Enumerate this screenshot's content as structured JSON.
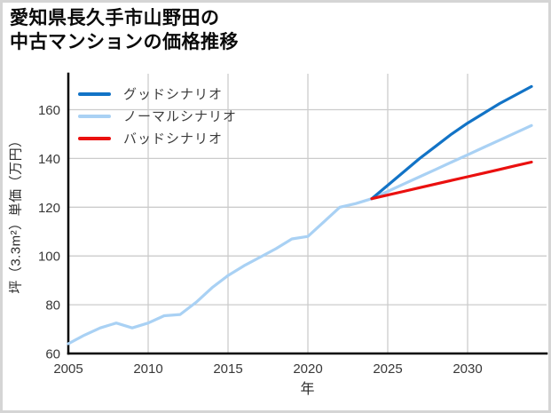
{
  "figure": {
    "title_lines": [
      "愛知県長久手市山野田の",
      "中古マンションの価格推移"
    ]
  },
  "chart_data": {
    "type": "line",
    "title": "愛知県長久手市山野田の中古マンションの価格推移",
    "xlabel": "年",
    "ylabel": "坪（3.3m²）単価（万円）",
    "xlim": [
      2005,
      2035
    ],
    "ylim": [
      60,
      175
    ],
    "xticks": [
      2005,
      2010,
      2015,
      2020,
      2025,
      2030
    ],
    "yticks": [
      60,
      80,
      100,
      120,
      140,
      160
    ],
    "grid": true,
    "legend_position": "upper-left",
    "forecast_start_year": 2024,
    "series": [
      {
        "name": "グッドシナリオ",
        "color": "#1273c6",
        "x": [
          2024,
          2025,
          2026,
          2027,
          2028,
          2029,
          2030,
          2031,
          2032,
          2033,
          2034
        ],
        "values": [
          123.5,
          129,
          134.5,
          140,
          145,
          150,
          154.5,
          158.5,
          162.5,
          166,
          169.5
        ]
      },
      {
        "name": "ノーマルシナリオ",
        "color": "#a9d1f4",
        "x": [
          2005,
          2006,
          2007,
          2008,
          2009,
          2010,
          2011,
          2012,
          2013,
          2014,
          2015,
          2016,
          2017,
          2018,
          2019,
          2020,
          2021,
          2022,
          2023,
          2024,
          2025,
          2026,
          2027,
          2028,
          2029,
          2030,
          2031,
          2032,
          2033,
          2034
        ],
        "values": [
          64,
          67.5,
          70.5,
          72.5,
          70.5,
          72.5,
          75.5,
          76,
          81,
          87,
          92,
          96,
          99.5,
          103,
          107,
          108,
          114,
          120,
          121.5,
          123.5,
          126.5,
          129.5,
          132.5,
          135.5,
          138.5,
          141.5,
          144.5,
          147.5,
          150.5,
          153.5
        ]
      },
      {
        "name": "バッドシナリオ",
        "color": "#ea100f",
        "x": [
          2024,
          2025,
          2026,
          2027,
          2028,
          2029,
          2030,
          2031,
          2032,
          2033,
          2034
        ],
        "values": [
          123.5,
          125,
          126.5,
          128,
          129.5,
          131,
          132.5,
          134,
          135.5,
          137,
          138.5
        ]
      }
    ],
    "colors": {
      "grid": "#cccccc",
      "spine": "#000000",
      "tick_label": "#383838"
    }
  }
}
